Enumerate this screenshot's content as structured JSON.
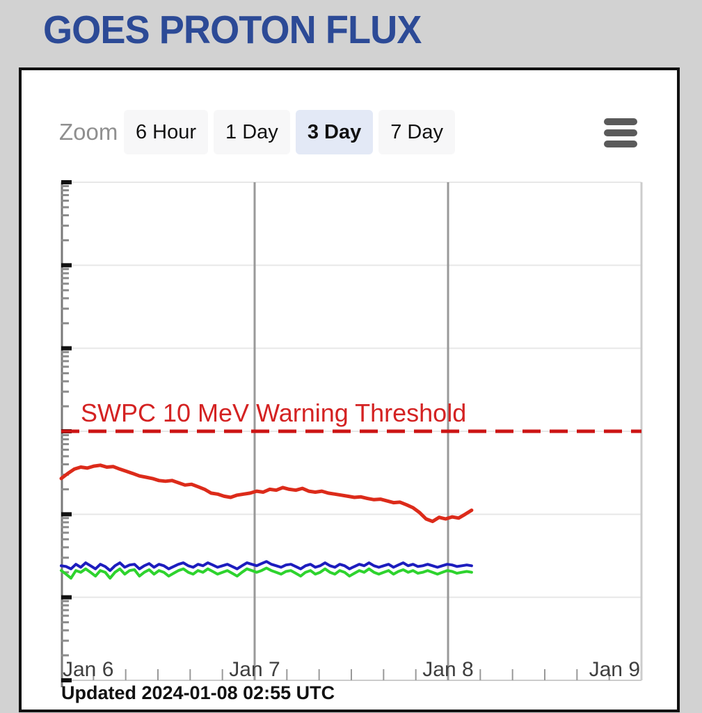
{
  "header": {
    "title": "GOES PROTON FLUX"
  },
  "toolbar": {
    "zoom_label": "Zoom",
    "buttons": [
      {
        "label": "6 Hour",
        "active": false
      },
      {
        "label": "1 Day",
        "active": false
      },
      {
        "label": "3 Day",
        "active": true
      },
      {
        "label": "7 Day",
        "active": false
      }
    ],
    "menu_icon": "hamburger-icon"
  },
  "footer": {
    "updated": "Updated 2024-01-08 02:55 UTC"
  },
  "colors": {
    "page_background": "#d2d2d2",
    "title": "#2c4a96",
    "panel_border": "#111111",
    "active_button_bg": "#e3e9f6",
    "threshold_red": "#cc1414",
    "series_red": "#dc2b1a",
    "series_blue": "#1d1dbe",
    "series_green": "#2ed32e"
  },
  "chart_data": {
    "type": "line",
    "title": "",
    "xlabel": "",
    "ylabel": "",
    "x_axis": {
      "labels": [
        "Jan 6",
        "Jan 7",
        "Jan 8",
        "Jan 9"
      ],
      "range_days": [
        0,
        3
      ],
      "minor_ticks_per_day": 6,
      "day_gridlines": [
        1,
        2
      ]
    },
    "y_axis": {
      "scale": "log",
      "min": 0.01,
      "max": 10000,
      "tick_labels_visible": false,
      "decade_gridlines": true
    },
    "legend": "none",
    "threshold": {
      "label": "SWPC 10 MeV Warning Threshold",
      "value": 10,
      "color": "#cc1414",
      "style": "dashed"
    },
    "series": [
      {
        "name": "red",
        "color": "#dc2b1a",
        "width": 5,
        "t_start": 0,
        "t_end": 2.122,
        "values": [
          2.7,
          3.1,
          3.5,
          3.7,
          3.6,
          3.8,
          3.9,
          3.7,
          3.75,
          3.5,
          3.3,
          3.1,
          2.9,
          2.8,
          2.7,
          2.55,
          2.5,
          2.55,
          2.4,
          2.25,
          2.3,
          2.15,
          2.0,
          1.8,
          1.75,
          1.65,
          1.6,
          1.7,
          1.75,
          1.8,
          1.9,
          1.85,
          2.0,
          1.95,
          2.1,
          2.0,
          1.95,
          2.05,
          1.9,
          1.85,
          1.9,
          1.8,
          1.75,
          1.7,
          1.65,
          1.6,
          1.62,
          1.55,
          1.5,
          1.52,
          1.45,
          1.38,
          1.4,
          1.3,
          1.2,
          1.05,
          0.88,
          0.82,
          0.92,
          0.88,
          0.93,
          0.9,
          1.0,
          1.12
        ]
      },
      {
        "name": "blue",
        "color": "#1d1dbe",
        "width": 4,
        "t_start": 0,
        "t_end": 2.122,
        "values": [
          0.24,
          0.235,
          0.22,
          0.25,
          0.23,
          0.26,
          0.24,
          0.22,
          0.25,
          0.235,
          0.21,
          0.24,
          0.26,
          0.23,
          0.245,
          0.25,
          0.22,
          0.24,
          0.255,
          0.23,
          0.25,
          0.24,
          0.22,
          0.235,
          0.25,
          0.26,
          0.24,
          0.23,
          0.25,
          0.24,
          0.26,
          0.245,
          0.23,
          0.24,
          0.25,
          0.235,
          0.22,
          0.24,
          0.26,
          0.25,
          0.24,
          0.255,
          0.27,
          0.25,
          0.24,
          0.23,
          0.245,
          0.25,
          0.235,
          0.22,
          0.24,
          0.25,
          0.23,
          0.24,
          0.26,
          0.24,
          0.23,
          0.25,
          0.24,
          0.22,
          0.235,
          0.25,
          0.24,
          0.26,
          0.24,
          0.23,
          0.24,
          0.25,
          0.23,
          0.245,
          0.26,
          0.24,
          0.25,
          0.235,
          0.24,
          0.25,
          0.24,
          0.23,
          0.24,
          0.25,
          0.245,
          0.235,
          0.24,
          0.245,
          0.24
        ]
      },
      {
        "name": "green",
        "color": "#2ed32e",
        "width": 4,
        "t_start": 0,
        "t_end": 2.122,
        "values": [
          0.21,
          0.19,
          0.17,
          0.21,
          0.2,
          0.22,
          0.2,
          0.18,
          0.21,
          0.2,
          0.17,
          0.2,
          0.22,
          0.19,
          0.21,
          0.215,
          0.18,
          0.2,
          0.215,
          0.19,
          0.21,
          0.2,
          0.18,
          0.195,
          0.21,
          0.22,
          0.2,
          0.19,
          0.21,
          0.2,
          0.22,
          0.205,
          0.19,
          0.2,
          0.21,
          0.195,
          0.18,
          0.2,
          0.22,
          0.21,
          0.2,
          0.21,
          0.225,
          0.21,
          0.2,
          0.19,
          0.205,
          0.21,
          0.195,
          0.18,
          0.2,
          0.21,
          0.19,
          0.2,
          0.22,
          0.2,
          0.19,
          0.21,
          0.2,
          0.18,
          0.195,
          0.21,
          0.2,
          0.22,
          0.2,
          0.19,
          0.2,
          0.21,
          0.19,
          0.205,
          0.215,
          0.2,
          0.21,
          0.195,
          0.2,
          0.21,
          0.2,
          0.19,
          0.2,
          0.21,
          0.205,
          0.195,
          0.2,
          0.205,
          0.2
        ]
      }
    ]
  }
}
